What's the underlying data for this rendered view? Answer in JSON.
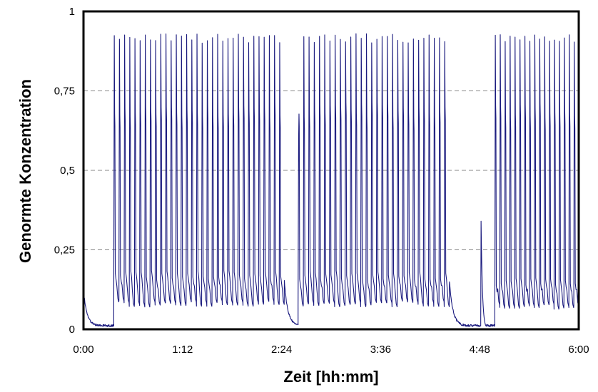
{
  "chart_data": {
    "type": "line",
    "title": "",
    "xlabel": "Zeit [hh:mm]",
    "ylabel": "Genormte Konzentration",
    "xlim_minutes": [
      0,
      360
    ],
    "ylim": [
      0,
      1
    ],
    "x_ticks": [
      "0:00",
      "1:12",
      "2:24",
      "3:36",
      "4:48",
      "6:00"
    ],
    "y_ticks": [
      "0",
      "0,25",
      "0,5",
      "0,75",
      "1"
    ],
    "y_tick_values": [
      0,
      0.25,
      0.5,
      0.75,
      1
    ],
    "grid": "horizontal dashed",
    "legend": "none",
    "series_color": "#1a1a7e",
    "series": [
      {
        "segments": [
          {
            "start": 0,
            "end": 22,
            "kind": "decay_baseline",
            "start_level": 0.11
          },
          {
            "start": 22,
            "end": 146,
            "kind": "pulses",
            "pulses": 33,
            "peak": 0.93,
            "trough": 0.08,
            "shoulder": 0.17,
            "mid": 0.65,
            "rise_level": 0.05
          },
          {
            "start": 146,
            "end": 156,
            "kind": "decay_baseline",
            "start_level": 0.14
          },
          {
            "start": 156,
            "end": 266,
            "kind": "pulses",
            "pulses": 29,
            "peak": 0.93,
            "trough": 0.08,
            "shoulder": 0.17,
            "mid": 0.65,
            "first_peak": 0.6
          },
          {
            "start": 266,
            "end": 299,
            "kind": "decay_baseline",
            "start_level": 0.14,
            "spike_at": 289,
            "spike_level": 0.34
          },
          {
            "start": 299,
            "end": 360,
            "kind": "pulses",
            "pulses": 17,
            "peak": 0.93,
            "trough": 0.07,
            "shoulder": 0.15,
            "mid": 0.65,
            "rise_level": 0.04
          }
        ]
      }
    ]
  }
}
